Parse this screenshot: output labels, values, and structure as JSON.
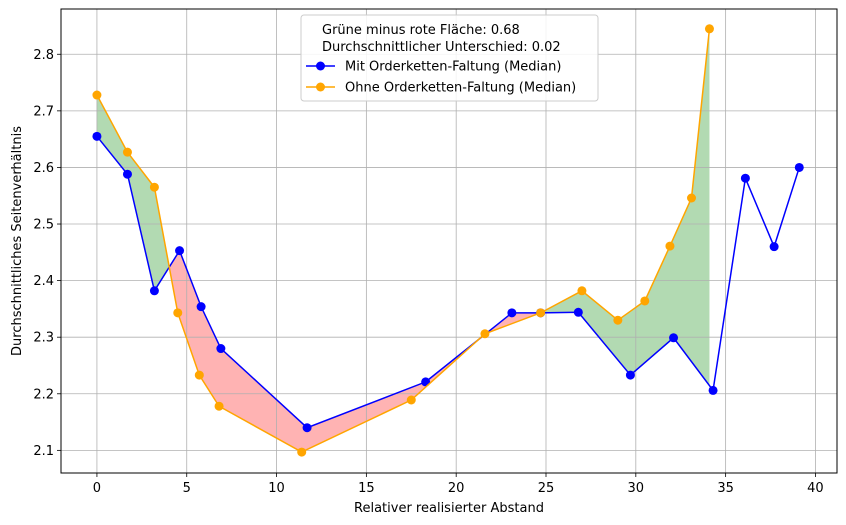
{
  "chart_data": {
    "type": "line",
    "title": "",
    "xlabel": "Relativer realisierter Abstand",
    "ylabel": "Durchschnittliches Seitenverhältnis",
    "xlim": [
      -2,
      41.2
    ],
    "ylim": [
      2.06,
      2.88
    ],
    "xticks": [
      0,
      5,
      10,
      15,
      20,
      25,
      30,
      35,
      40
    ],
    "yticks": [
      2.1,
      2.2,
      2.3,
      2.4,
      2.5,
      2.6,
      2.7,
      2.8
    ],
    "grid": true,
    "legend_position": "top-center",
    "annotations": [
      "Grüne minus rote Fläche: 0.68",
      "Durchschnittlicher Unterschied: 0.02"
    ],
    "fill_colors": {
      "positive": "#b2dab2",
      "negative": "#ffb3b3"
    },
    "series": [
      {
        "name": "Mit Orderketten-Faltung (Median)",
        "color": "#0000ff",
        "x": [
          0,
          1.7,
          3.2,
          4.6,
          5.8,
          6.9,
          11.7,
          18.3,
          23.1,
          24.7,
          26.8,
          29.7,
          32.1,
          34.3,
          36.1,
          37.7,
          39.1
        ],
        "y": [
          2.655,
          2.588,
          2.382,
          2.453,
          2.354,
          2.28,
          2.14,
          2.221,
          2.343,
          2.343,
          2.344,
          2.233,
          2.299,
          2.206,
          2.581,
          2.46,
          2.6
        ]
      },
      {
        "name": "Ohne Orderketten-Faltung (Median)",
        "color": "#ffa500",
        "x": [
          0,
          1.7,
          3.2,
          4.5,
          5.7,
          6.8,
          11.4,
          17.5,
          21.6,
          24.7,
          27.0,
          29.0,
          30.5,
          31.9,
          33.1,
          34.1
        ],
        "y": [
          2.728,
          2.627,
          2.565,
          2.343,
          2.233,
          2.178,
          2.097,
          2.189,
          2.306,
          2.343,
          2.382,
          2.33,
          2.364,
          2.461,
          2.546,
          2.845
        ]
      }
    ]
  }
}
